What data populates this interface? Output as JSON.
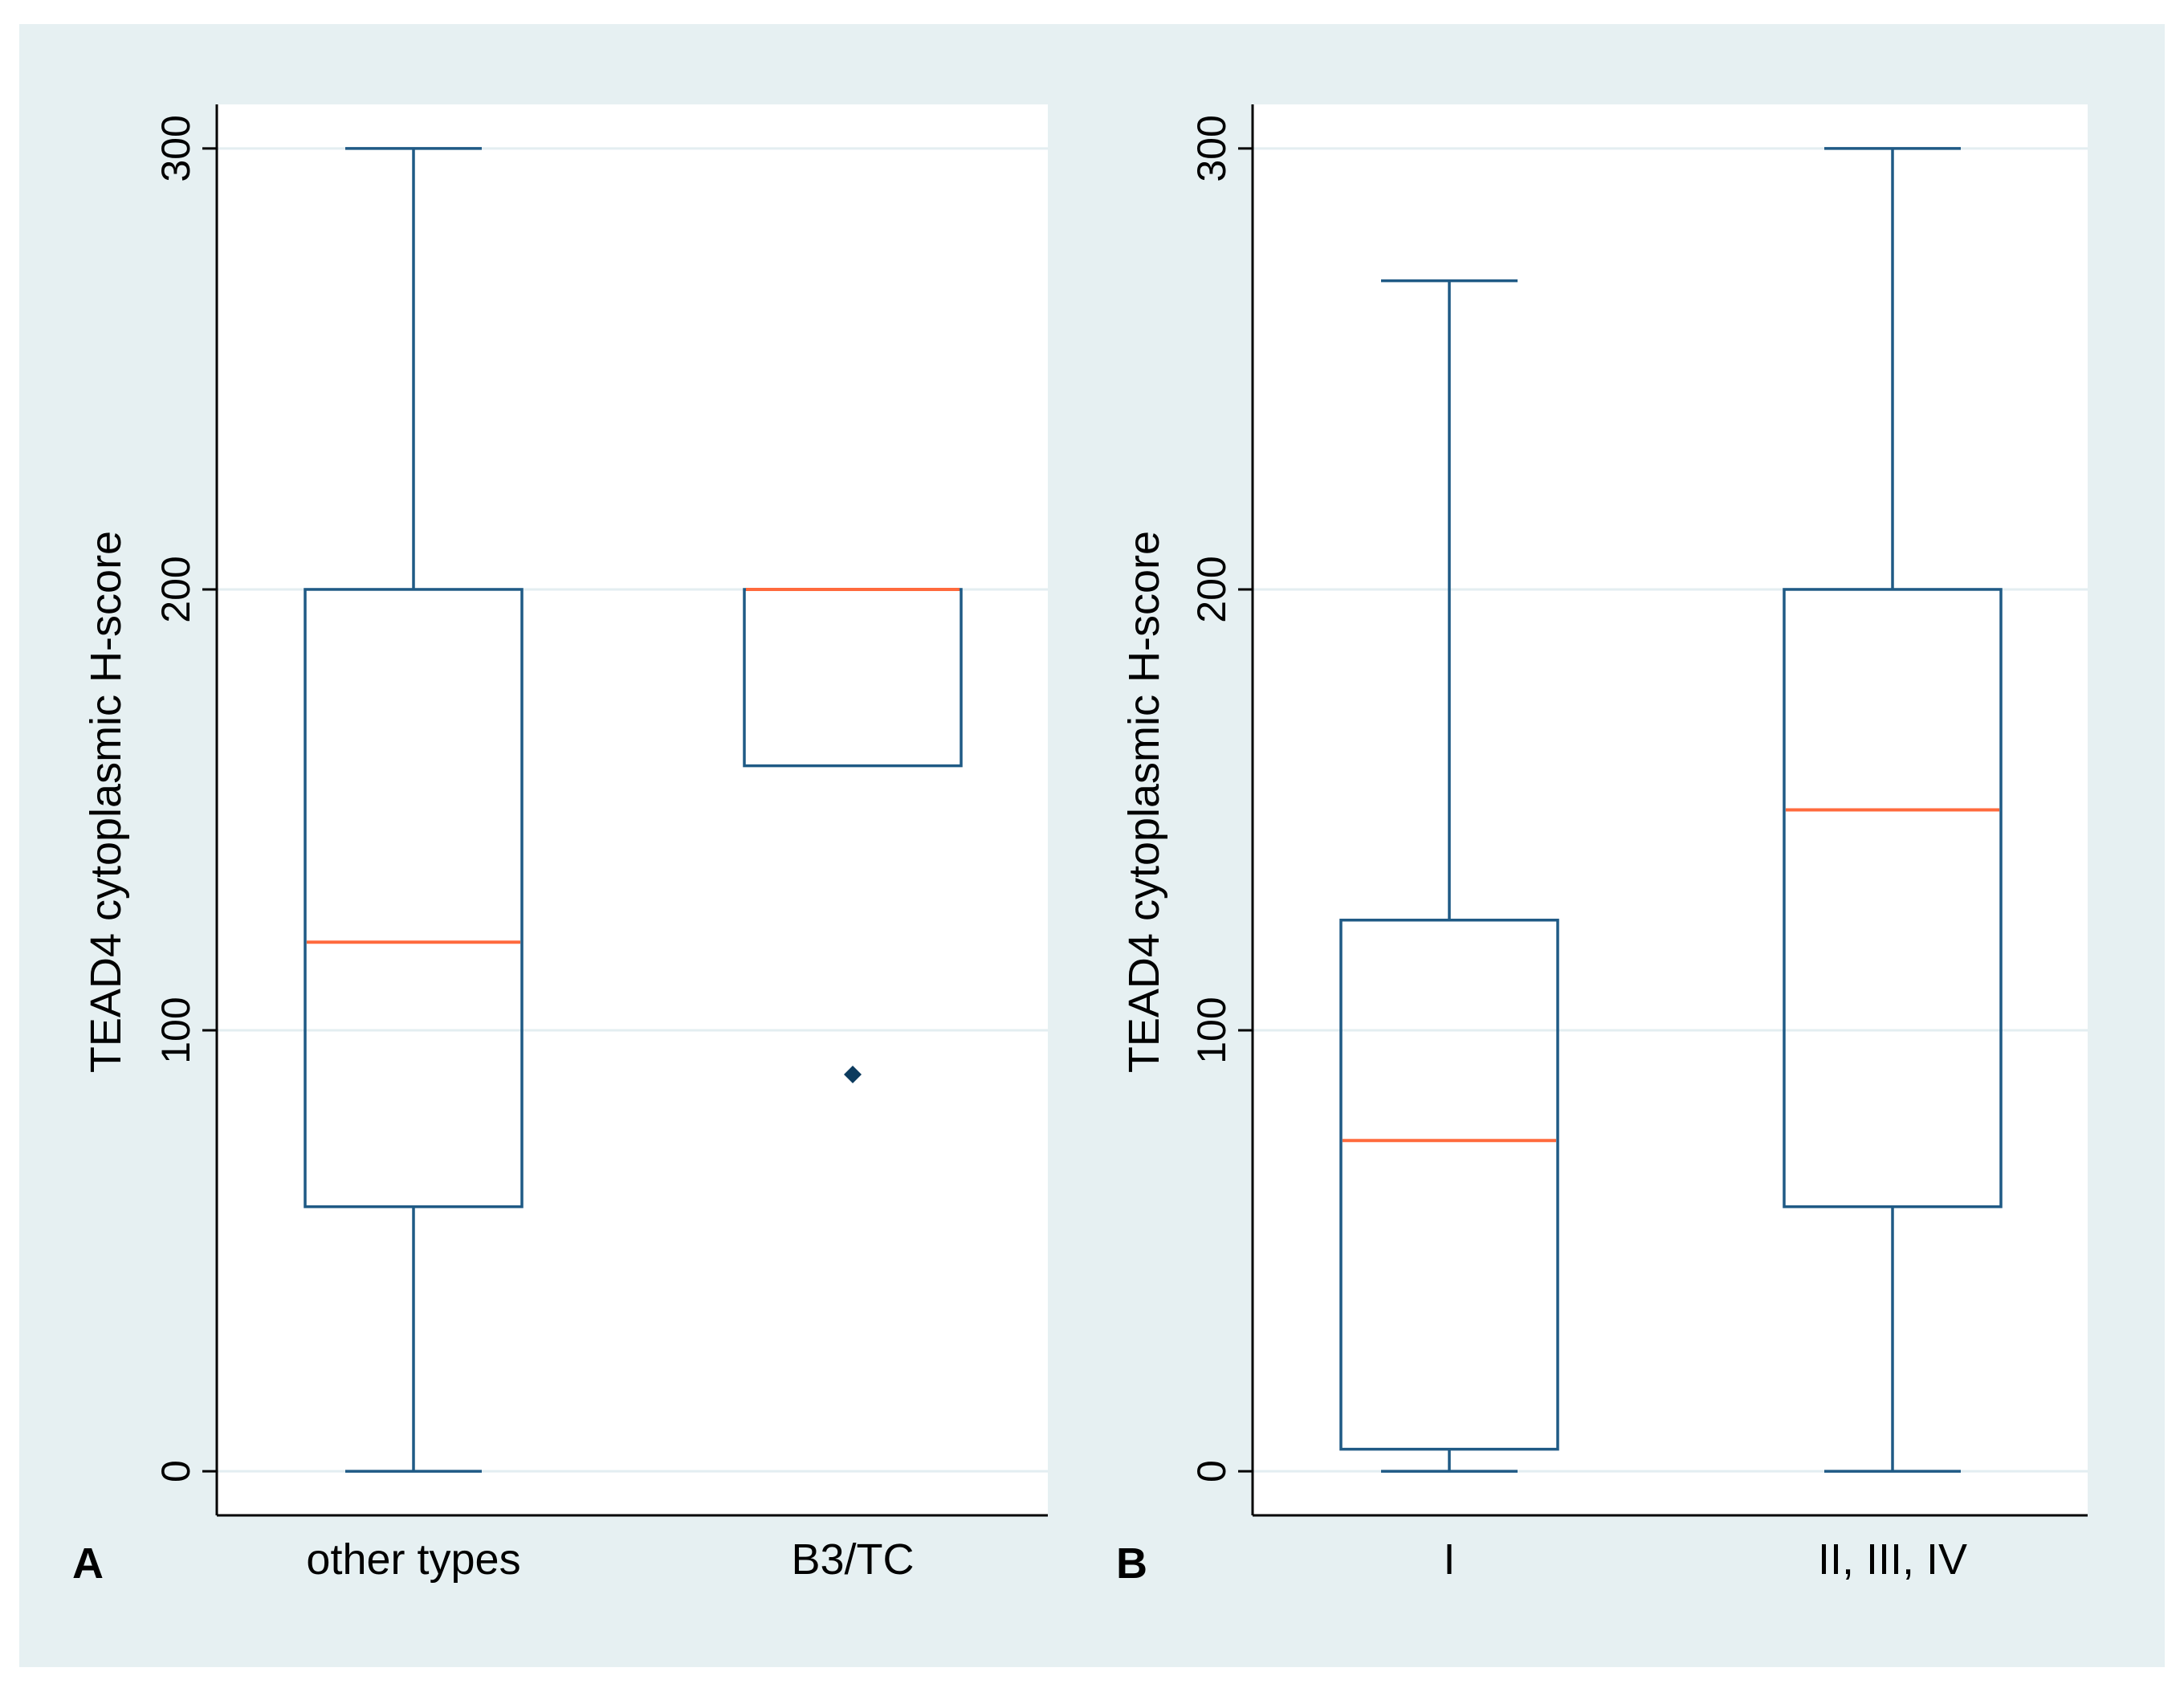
{
  "colors": {
    "outer_background": "#e6f0f2",
    "plot_background": "#ffffff",
    "gridline": "#e3eef1",
    "box_line": "#1f5a85",
    "median_line": "#ff6a3d",
    "outlier": "#0c3b5e",
    "axis_line": "#000000"
  },
  "chart_data": [
    {
      "type": "box",
      "panel_label": "A",
      "title": "",
      "xlabel": "",
      "ylabel": "TEAD4 cytoplasmic H-score",
      "ylim": [
        -10,
        310
      ],
      "yticks": [
        0,
        100,
        200,
        300
      ],
      "ytick_labels": [
        "0",
        "100",
        "200",
        "300"
      ],
      "grid": true,
      "categories": [
        "other types",
        "B3/TC"
      ],
      "boxes": [
        {
          "category": "other types",
          "whisker_low": 0,
          "q1": 60,
          "median": 120,
          "q3": 200,
          "whisker_high": 300,
          "outliers": []
        },
        {
          "category": "B3/TC",
          "whisker_low": 160,
          "q1": 160,
          "median": 200,
          "q3": 200,
          "whisker_high": 200,
          "outliers": [
            90
          ]
        }
      ]
    },
    {
      "type": "box",
      "panel_label": "B",
      "title": "",
      "xlabel": "",
      "ylabel": "TEAD4 cytoplasmic H-score",
      "ylim": [
        -10,
        310
      ],
      "yticks": [
        0,
        100,
        200,
        300
      ],
      "ytick_labels": [
        "0",
        "100",
        "200",
        "300"
      ],
      "grid": true,
      "categories": [
        "I",
        "II, III, IV"
      ],
      "boxes": [
        {
          "category": "I",
          "whisker_low": 0,
          "q1": 5,
          "median": 75,
          "q3": 125,
          "whisker_high": 270,
          "outliers": []
        },
        {
          "category": "II, III, IV",
          "whisker_low": 0,
          "q1": 60,
          "median": 150,
          "q3": 200,
          "whisker_high": 300,
          "outliers": []
        }
      ]
    }
  ]
}
